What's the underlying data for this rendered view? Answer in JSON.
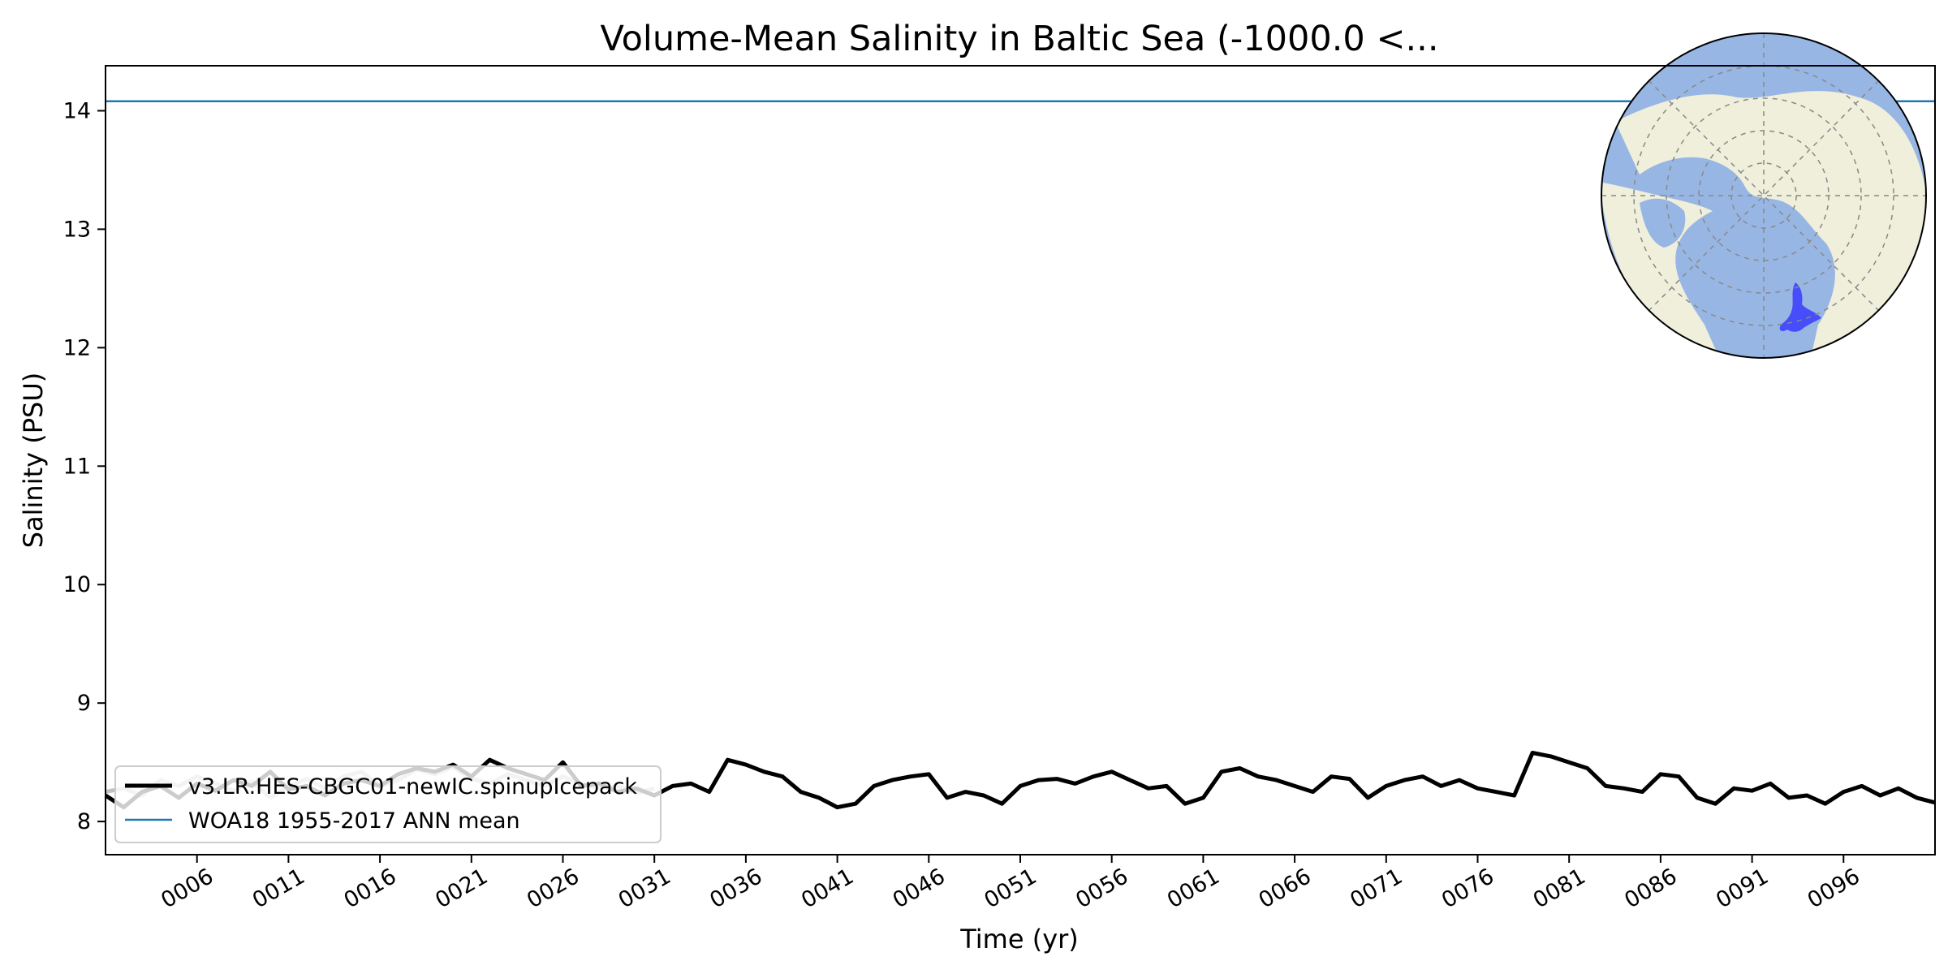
{
  "chart_data": {
    "type": "line",
    "title": "Volume-Mean Salinity in Baltic Sea (-1000.0 <...",
    "xlabel": "Time (yr)",
    "ylabel": "Salinity (PSU)",
    "xlim": [
      1,
      101
    ],
    "ylim": [
      7.72,
      14.38
    ],
    "grid": false,
    "legend_position": "lower-left",
    "x_tick_labels": [
      "0006",
      "0011",
      "0016",
      "0021",
      "0026",
      "0031",
      "0036",
      "0041",
      "0046",
      "0051",
      "0056",
      "0061",
      "0066",
      "0071",
      "0076",
      "0081",
      "0086",
      "0091",
      "0096"
    ],
    "x_tick_values": [
      6,
      11,
      16,
      21,
      26,
      31,
      36,
      41,
      46,
      51,
      56,
      61,
      66,
      71,
      76,
      81,
      86,
      91,
      96
    ],
    "y_tick_labels": [
      "8",
      "9",
      "10",
      "11",
      "12",
      "13",
      "14"
    ],
    "y_tick_values": [
      8,
      9,
      10,
      11,
      12,
      13,
      14
    ],
    "series": [
      {
        "name": "v3.LR.HES-CBGC01-newIC.spinupIcepack",
        "color": "#000000",
        "line_style": "solid-thick",
        "x": [
          1,
          2,
          3,
          4,
          5,
          6,
          7,
          8,
          9,
          10,
          11,
          12,
          13,
          14,
          15,
          16,
          17,
          18,
          19,
          20,
          21,
          22,
          23,
          24,
          25,
          26,
          27,
          28,
          29,
          30,
          31,
          32,
          33,
          34,
          35,
          36,
          37,
          38,
          39,
          40,
          41,
          42,
          43,
          44,
          45,
          46,
          47,
          48,
          49,
          50,
          51,
          52,
          53,
          54,
          55,
          56,
          57,
          58,
          59,
          60,
          61,
          62,
          63,
          64,
          65,
          66,
          67,
          68,
          69,
          70,
          71,
          72,
          73,
          74,
          75,
          76,
          77,
          78,
          79,
          80,
          81,
          82,
          83,
          84,
          85,
          86,
          87,
          88,
          89,
          90,
          91,
          92,
          93,
          94,
          95,
          96,
          97,
          98,
          99,
          100,
          101
        ],
        "values": [
          8.22,
          8.12,
          8.25,
          8.3,
          8.2,
          8.32,
          8.26,
          8.35,
          8.3,
          8.42,
          8.27,
          8.3,
          8.22,
          8.32,
          8.35,
          8.3,
          8.4,
          8.45,
          8.42,
          8.48,
          8.38,
          8.52,
          8.45,
          8.4,
          8.35,
          8.5,
          8.3,
          8.32,
          8.25,
          8.28,
          8.22,
          8.3,
          8.32,
          8.25,
          8.52,
          8.48,
          8.42,
          8.38,
          8.25,
          8.2,
          8.12,
          8.15,
          8.3,
          8.35,
          8.38,
          8.4,
          8.2,
          8.25,
          8.22,
          8.15,
          8.3,
          8.35,
          8.36,
          8.32,
          8.38,
          8.42,
          8.35,
          8.28,
          8.3,
          8.15,
          8.2,
          8.42,
          8.45,
          8.38,
          8.35,
          8.3,
          8.25,
          8.38,
          8.36,
          8.2,
          8.3,
          8.35,
          8.38,
          8.3,
          8.35,
          8.28,
          8.25,
          8.22,
          8.58,
          8.55,
          8.5,
          8.45,
          8.3,
          8.28,
          8.25,
          8.4,
          8.38,
          8.2,
          8.15,
          8.28,
          8.26,
          8.32,
          8.2,
          8.22,
          8.15,
          8.25,
          8.3,
          8.22,
          8.28,
          8.2,
          8.16
        ]
      },
      {
        "name": "",
        "color": "#c0c0c0",
        "line_style": "solid-thick",
        "x": [
          1,
          2,
          3,
          4,
          5,
          6,
          7,
          8,
          9,
          10,
          11,
          12,
          13,
          14,
          15,
          16,
          17,
          18,
          19,
          20,
          21,
          22,
          23,
          24,
          25,
          26,
          27,
          28,
          29,
          30,
          31
        ],
        "values": [
          8.25,
          8.28,
          8.22,
          8.35,
          8.3,
          8.38,
          8.32,
          8.26,
          8.34,
          8.2,
          8.3,
          8.36,
          8.28,
          8.38,
          8.42,
          8.3,
          8.35,
          8.44,
          8.4,
          8.46,
          8.36,
          8.32,
          8.4,
          8.35,
          8.3,
          8.38,
          8.32,
          8.28,
          8.3,
          8.24,
          8.28
        ]
      },
      {
        "name": "WOA18 1955-2017 ANN mean",
        "color": "#1f77b4",
        "line_style": "solid-thin",
        "x": [
          1,
          101
        ],
        "values": [
          14.08,
          14.08
        ]
      }
    ]
  },
  "inset_map": {
    "projection": "north-polar-stereographic",
    "ocean_color": "#98b6e4",
    "land_color": "#efefdb",
    "region_color": "#3333ff",
    "region": "Baltic Sea"
  }
}
